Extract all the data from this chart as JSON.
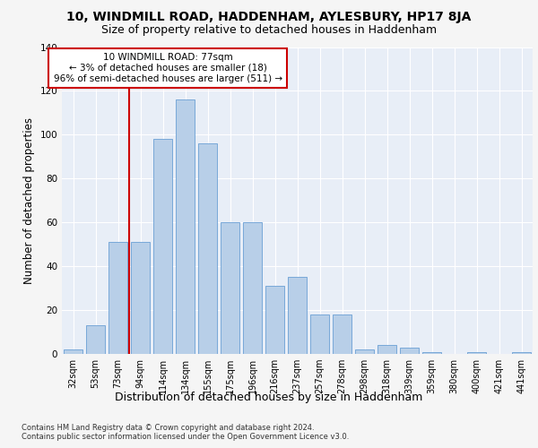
{
  "title_line1": "10, WINDMILL ROAD, HADDENHAM, AYLESBURY, HP17 8JA",
  "title_line2": "Size of property relative to detached houses in Haddenham",
  "xlabel": "Distribution of detached houses by size in Haddenham",
  "ylabel": "Number of detached properties",
  "footnote": "Contains HM Land Registry data © Crown copyright and database right 2024.\nContains public sector information licensed under the Open Government Licence v3.0.",
  "categories": [
    "32sqm",
    "53sqm",
    "73sqm",
    "94sqm",
    "114sqm",
    "134sqm",
    "155sqm",
    "175sqm",
    "196sqm",
    "216sqm",
    "237sqm",
    "257sqm",
    "278sqm",
    "298sqm",
    "318sqm",
    "339sqm",
    "359sqm",
    "380sqm",
    "400sqm",
    "421sqm",
    "441sqm"
  ],
  "values": [
    2,
    13,
    51,
    51,
    98,
    116,
    96,
    60,
    60,
    31,
    35,
    18,
    18,
    2,
    4,
    3,
    1,
    0,
    1,
    0,
    1
  ],
  "bar_color": "#b8cfe8",
  "bar_edge_color": "#6a9fd4",
  "vline_color": "#cc0000",
  "vline_x": 2.5,
  "annotation_text": "10 WINDMILL ROAD: 77sqm\n← 3% of detached houses are smaller (18)\n96% of semi-detached houses are larger (511) →",
  "annotation_box_color": "#ffffff",
  "annotation_box_edge": "#cc0000",
  "ylim": [
    0,
    140
  ],
  "yticks": [
    0,
    20,
    40,
    60,
    80,
    100,
    120,
    140
  ],
  "fig_bg_color": "#f5f5f5",
  "plot_bg_color": "#e8eef7",
  "grid_color": "#ffffff",
  "title_fontsize": 10,
  "subtitle_fontsize": 9,
  "tick_fontsize": 7,
  "ylabel_fontsize": 8.5,
  "xlabel_fontsize": 9,
  "ann_fontsize": 7.5,
  "footnote_fontsize": 6
}
